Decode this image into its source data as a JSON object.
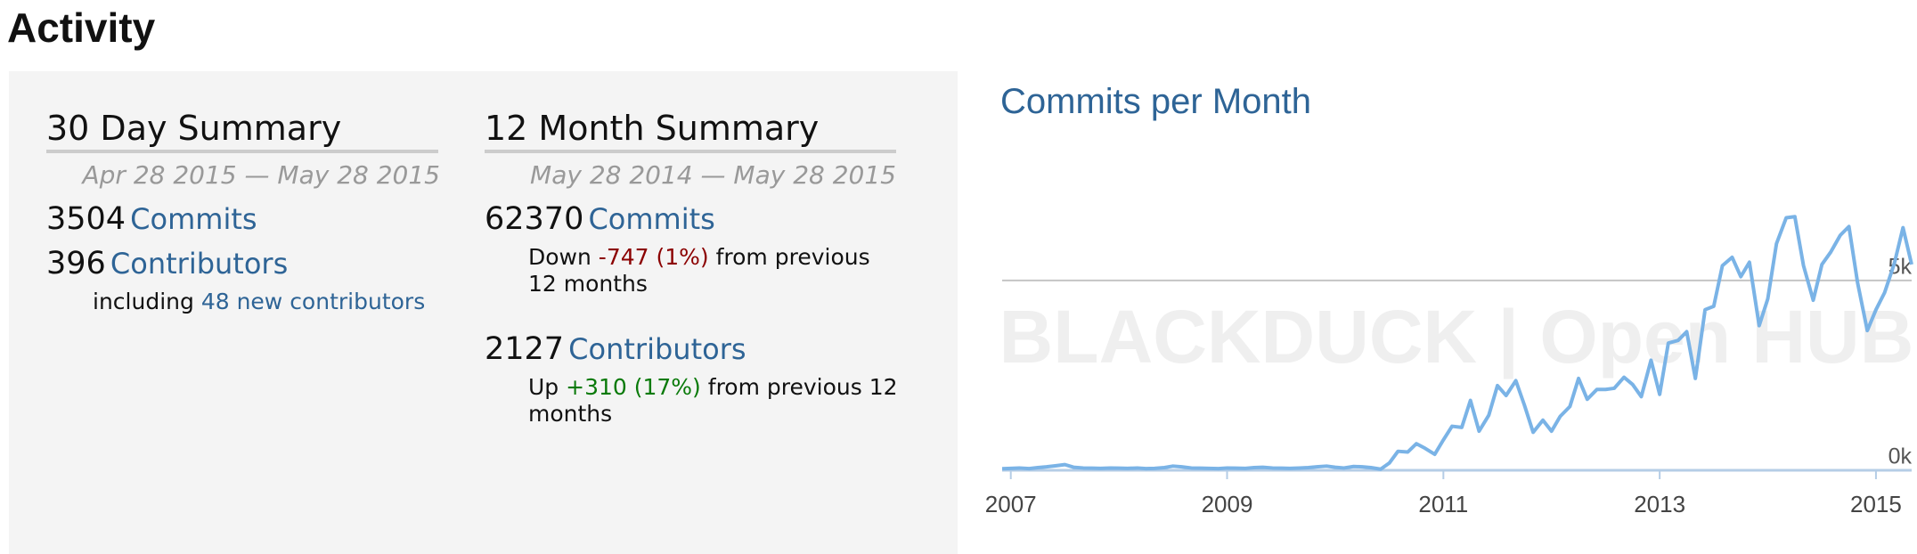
{
  "header": {
    "title": "Activity"
  },
  "summary_30_day": {
    "title": "30 Day Summary",
    "date_range": "Apr 28 2015 — May 28 2015",
    "commits": 3504,
    "commits_label": "Commits",
    "contributors": 396,
    "contributors_label": "Contributors",
    "new_contributors_prefix": "including",
    "new_contributors": "48 new contributors"
  },
  "summary_12_month": {
    "title": "12 Month Summary",
    "date_range": "May 28 2014 — May 28 2015",
    "commits": 62370,
    "commits_label": "Commits",
    "commits_change_prefix": "Down",
    "commits_change": "-747 (1%)",
    "commits_change_suffix": "from previous 12 months",
    "contributors": 2127,
    "contributors_label": "Contributors",
    "contributors_change_prefix": "Up",
    "contributors_change": "+310 (17%)",
    "contributors_change_suffix": "from previous 12 months"
  },
  "chart_data": {
    "type": "line",
    "title": "Commits per Month",
    "watermark": "BLACKDUCK | Open HUB",
    "x": [
      2006.92,
      2007,
      2007.08,
      2007.17,
      2007.25,
      2007.33,
      2007.42,
      2007.5,
      2007.58,
      2007.67,
      2007.75,
      2007.83,
      2007.92,
      2008,
      2008.08,
      2008.17,
      2008.25,
      2008.33,
      2008.42,
      2008.5,
      2008.58,
      2008.67,
      2008.75,
      2008.83,
      2008.92,
      2009,
      2009.08,
      2009.17,
      2009.25,
      2009.33,
      2009.42,
      2009.5,
      2009.58,
      2009.67,
      2009.75,
      2009.83,
      2009.92,
      2010,
      2010.08,
      2010.17,
      2010.25,
      2010.33,
      2010.42,
      2010.5,
      2010.58,
      2010.67,
      2010.75,
      2010.83,
      2010.92,
      2011,
      2011.08,
      2011.17,
      2011.25,
      2011.33,
      2011.42,
      2011.5,
      2011.58,
      2011.67,
      2011.75,
      2011.83,
      2011.92,
      2012,
      2012.08,
      2012.17,
      2012.25,
      2012.33,
      2012.42,
      2012.5,
      2012.58,
      2012.67,
      2012.75,
      2012.83,
      2012.92,
      2013,
      2013.08,
      2013.17,
      2013.25,
      2013.33,
      2013.42,
      2013.5,
      2013.58,
      2013.67,
      2013.75,
      2013.83,
      2013.92,
      2014,
      2014.08,
      2014.17,
      2014.25,
      2014.33,
      2014.42,
      2014.5,
      2014.58,
      2014.67,
      2014.75,
      2014.83,
      2014.92,
      2015,
      2015.08,
      2015.17,
      2015.25,
      2015.33
    ],
    "series": [
      {
        "color": "#7ab3e6",
        "values": [
          40,
          50,
          60,
          45,
          70,
          90,
          120,
          150,
          80,
          60,
          55,
          50,
          60,
          55,
          50,
          60,
          45,
          50,
          70,
          110,
          90,
          60,
          55,
          50,
          45,
          60,
          55,
          50,
          70,
          80,
          60,
          55,
          50,
          60,
          70,
          90,
          110,
          80,
          60,
          100,
          90,
          70,
          30,
          190,
          500,
          480,
          700,
          580,
          420,
          800,
          1160,
          1130,
          1840,
          1030,
          1450,
          2230,
          1970,
          2360,
          1710,
          1000,
          1320,
          1030,
          1420,
          1680,
          2420,
          1870,
          2130,
          2130,
          2160,
          2450,
          2260,
          1940,
          2900,
          2000,
          3350,
          3420,
          3650,
          2420,
          4230,
          4320,
          5390,
          5610,
          5100,
          5480,
          3810,
          4520,
          5970,
          6650,
          6680,
          5390,
          4480,
          5420,
          5740,
          6190,
          6420,
          4940,
          3680,
          4230,
          4680,
          5450,
          6390,
          5420
        ]
      }
    ],
    "xlim": [
      2006.92,
      2015.33
    ],
    "xticks": [
      2007,
      2009,
      2011,
      2013,
      2015
    ],
    "ylim": [
      0,
      8000
    ],
    "yticks": [
      {
        "value": 0,
        "label": "0k"
      },
      {
        "value": 5000,
        "label": "5k"
      }
    ],
    "grid": true
  }
}
